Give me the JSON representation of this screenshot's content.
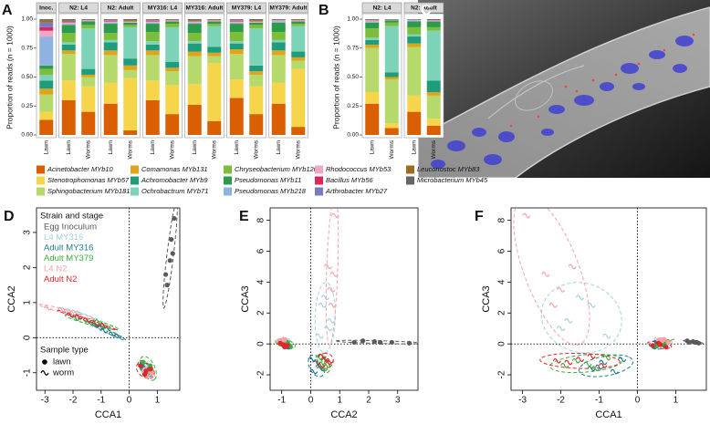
{
  "chart_data": [
    {
      "type": "stacked-bar",
      "ylabel": "Proportion of reads (n = 1000)",
      "ylim": [
        0,
        1
      ],
      "yticks": [
        {
          "value": 0,
          "label": "0.00"
        },
        {
          "value": 0.25,
          "label": "0.25"
        },
        {
          "value": 0.5,
          "label": "0.50"
        },
        {
          "value": 0.75,
          "label": "0.75"
        },
        {
          "value": 1,
          "label": "1.00"
        }
      ],
      "panels": [
        {
          "letter": "A",
          "facets": [
            {
              "label": "Inoc.",
              "categories": [
                "Lawn"
              ]
            },
            {
              "label": "N2: L4",
              "categories": [
                "Lawn",
                "Worms"
              ]
            },
            {
              "label": "N2: Adult",
              "categories": [
                "Lawn",
                "Worms"
              ]
            },
            {
              "label": "MY316: L4",
              "categories": [
                "Lawn",
                "Worms"
              ]
            },
            {
              "label": "MY316: Adult",
              "categories": [
                "Lawn",
                "Worms"
              ]
            },
            {
              "label": "MY379: L4",
              "categories": [
                "Lawn",
                "Worms"
              ]
            },
            {
              "label": "MY379: Adult",
              "categories": [
                "Lawn",
                "Worms"
              ]
            }
          ]
        },
        {
          "letter": "B",
          "facets": [
            {
              "label": "N2: L4",
              "categories": [
                "Lawn",
                "Worms"
              ]
            },
            {
              "label": "N2: Adult",
              "categories": [
                "Lawn",
                "Worms"
              ]
            }
          ]
        }
      ],
      "series": [
        {
          "name": "Acinetobacter MYb10",
          "color": "#d95f02",
          "values": [
            0.13,
            0.3,
            0.2,
            0.27,
            0.04,
            0.3,
            0.18,
            0.26,
            0.12,
            0.32,
            0.18,
            0.27,
            0.07,
            0.27,
            0.06,
            0.2,
            0.08
          ]
        },
        {
          "name": "Stenotrophomonas MYb57",
          "color": "#f7d54a",
          "values": [
            0.07,
            0.17,
            0.22,
            0.18,
            0.45,
            0.17,
            0.25,
            0.18,
            0.5,
            0.16,
            0.24,
            0.18,
            0.5,
            0.1,
            0.04,
            0.14,
            0.06
          ]
        },
        {
          "name": "Sphingobacterium MYb181",
          "color": "#b5d96b",
          "values": [
            0.15,
            0.23,
            0.08,
            0.24,
            0.07,
            0.22,
            0.12,
            0.24,
            0.06,
            0.22,
            0.1,
            0.24,
            0.07,
            0.38,
            0.38,
            0.42,
            0.2
          ]
        },
        {
          "name": "Comamonas MYb131",
          "color": "#e0a31a",
          "values": [
            0.05,
            0.03,
            0.02,
            0.04,
            0.04,
            0.04,
            0.03,
            0.04,
            0.03,
            0.04,
            0.03,
            0.04,
            0.03,
            0.03,
            0.02,
            0.03,
            0.03
          ]
        },
        {
          "name": "Achromobacter MYb9",
          "color": "#1e9c7b",
          "values": [
            0.07,
            0.05,
            0.05,
            0.07,
            0.06,
            0.05,
            0.05,
            0.07,
            0.05,
            0.05,
            0.05,
            0.07,
            0.05,
            0.04,
            0.04,
            0.06,
            0.1
          ]
        },
        {
          "name": "Ochrobactrum MYb71",
          "color": "#7dd3b8",
          "values": [
            0.05,
            0.02,
            0.35,
            0.02,
            0.27,
            0.03,
            0.3,
            0.02,
            0.18,
            0.02,
            0.32,
            0.02,
            0.22,
            0.02,
            0.4,
            0.02,
            0.43
          ]
        },
        {
          "name": "Chryseobacterium MYb120",
          "color": "#7cbd3a",
          "values": [
            0.05,
            0.08,
            0.03,
            0.06,
            0.02,
            0.08,
            0.03,
            0.07,
            0.02,
            0.08,
            0.03,
            0.07,
            0.02,
            0.08,
            0.03,
            0.06,
            0.03
          ]
        },
        {
          "name": "Pseudomonas MYb11",
          "color": "#2b9a4a",
          "values": [
            0.03,
            0.07,
            0.03,
            0.08,
            0.02,
            0.07,
            0.02,
            0.08,
            0.02,
            0.07,
            0.02,
            0.08,
            0.02,
            0.05,
            0.02,
            0.05,
            0.05
          ]
        },
        {
          "name": "Pseudomonas MYb218",
          "color": "#8fb3e0",
          "values": [
            0.25,
            0.01,
            0.005,
            0.01,
            0,
            0.01,
            0,
            0.01,
            0,
            0.01,
            0,
            0.01,
            0,
            0.01,
            0,
            0.01,
            0
          ]
        },
        {
          "name": "Rhodococcus MYb53",
          "color": "#f0a7c6",
          "values": [
            0.05,
            0.01,
            0.005,
            0.01,
            0.01,
            0.01,
            0.01,
            0.01,
            0.01,
            0.01,
            0.01,
            0.01,
            0.01,
            0.01,
            0.005,
            0.005,
            0.01
          ]
        },
        {
          "name": "Bacillus MYb56",
          "color": "#e0245e",
          "values": [
            0.03,
            0.005,
            0,
            0.005,
            0,
            0.005,
            0,
            0,
            0,
            0.005,
            0,
            0,
            0,
            0,
            0,
            0,
            0
          ]
        },
        {
          "name": "Arthrobacter MYb27",
          "color": "#7a7ac4",
          "values": [
            0.04,
            0.005,
            0,
            0.005,
            0,
            0.005,
            0,
            0,
            0,
            0.005,
            0,
            0,
            0,
            0,
            0,
            0,
            0
          ]
        },
        {
          "name": "Leuconostoc MYb83",
          "color": "#9c6b1c",
          "values": [
            0.02,
            0.01,
            0.005,
            0.005,
            0.01,
            0.005,
            0.005,
            0.01,
            0.005,
            0.005,
            0.01,
            0.005,
            0.005,
            0.005,
            0,
            0,
            0
          ]
        },
        {
          "name": "Microbacterium MYb45",
          "color": "#666666",
          "values": [
            0.01,
            0.01,
            0.005,
            0.005,
            0.01,
            0.005,
            0.005,
            0.01,
            0.005,
            0.005,
            0.01,
            0.005,
            0.005,
            0.005,
            0.005,
            0.005,
            0.01
          ]
        }
      ]
    },
    {
      "type": "image",
      "letter": "C"
    },
    {
      "type": "scatter",
      "legend_title": "Strain and stage",
      "sample_title": "Sample type",
      "sample_types": [
        {
          "name": "lawn",
          "marker": "circle"
        },
        {
          "name": "worm",
          "marker": "tilde"
        }
      ],
      "groups": [
        {
          "name": "Egg Inoculum",
          "color": "#5a5a5a",
          "points": [
            {
              "CCA1": [
                1.35,
                1.45,
                1.5,
                1.6,
                1.3,
                1.55
              ],
              "CCA2": [
                1.5,
                2.2,
                2.8,
                3.4,
                1.8,
                2.4
              ],
              "CCA3": [
                0.1,
                0.15,
                0.1,
                0.05,
                0.2,
                0.1
              ]
            },
            {
              "CCA1": [],
              "CCA2": [],
              "CCA3": []
            }
          ]
        },
        {
          "name": "L4 MY316",
          "color": "#9fd3e0",
          "points": [
            {
              "CCA1": [
                0.5,
                0.6,
                0.7,
                0.55
              ],
              "CCA2": [
                -0.8,
                -0.9,
                -0.85,
                -0.95
              ],
              "CCA3": [
                0.1,
                -0.1,
                0.2,
                0.0
              ]
            },
            {
              "CCA1": [
                -1.2,
                -1.8,
                -0.8,
                -1.5,
                -2.0
              ],
              "CCA2": [
                0.4,
                0.7,
                0.3,
                0.5,
                0.6
              ],
              "CCA3": [
                2.5,
                1.5,
                0.5,
                3.0,
                1.0
              ]
            }
          ]
        },
        {
          "name": "Adult MY316",
          "color": "#1f7a8c",
          "points": [
            {
              "CCA1": [
                0.45,
                0.6,
                0.7,
                0.5
              ],
              "CCA2": [
                -0.75,
                -1.0,
                -0.9,
                -0.85
              ],
              "CCA3": [
                -0.2,
                0.05,
                -0.1,
                0.1
              ]
            },
            {
              "CCA1": [
                -0.6,
                -0.9,
                -1.0,
                -0.4,
                -1.2
              ],
              "CCA2": [
                0.1,
                0.2,
                0.3,
                0.05,
                0.35
              ],
              "CCA3": [
                -1.8,
                -1.2,
                -1.5,
                -1.0,
                -1.6
              ]
            }
          ]
        },
        {
          "name": "Adult MY379",
          "color": "#3cae3c",
          "points": [
            {
              "CCA1": [
                0.65,
                0.8,
                0.5,
                0.75
              ],
              "CCA2": [
                -1.05,
                -0.95,
                -0.7,
                -0.8
              ],
              "CCA3": [
                0.0,
                0.15,
                -0.15,
                0.1
              ]
            },
            {
              "CCA1": [
                -1.3,
                -1.6,
                -1.1,
                -0.8,
                -1.9
              ],
              "CCA2": [
                0.4,
                0.5,
                0.45,
                0.3,
                0.55
              ],
              "CCA3": [
                -1.3,
                -1.1,
                -1.6,
                -0.9,
                -1.4
              ]
            }
          ]
        },
        {
          "name": "L4 N2",
          "color": "#f4a3a8",
          "points": [
            {
              "CCA1": [
                0.55,
                0.7,
                0.65,
                0.8
              ],
              "CCA2": [
                -0.9,
                -0.95,
                -1.1,
                -1.0
              ],
              "CCA3": [
                0.25,
                0.3,
                0.2,
                0.1
              ]
            },
            {
              "CCA1": [
                -2.9,
                -2.4,
                -2.0,
                -1.7,
                -2.2
              ],
              "CCA2": [
                0.85,
                0.8,
                0.7,
                0.6,
                0.75
              ],
              "CCA3": [
                8.3,
                4.5,
                3.5,
                5.0,
                2.5
              ]
            }
          ]
        },
        {
          "name": "Adult N2",
          "color": "#e3242b",
          "points": [
            {
              "CCA1": [
                0.4,
                0.6,
                0.55,
                0.75
              ],
              "CCA2": [
                -0.8,
                -0.95,
                -1.05,
                -0.9
              ],
              "CCA3": [
                -0.1,
                -0.05,
                0.05,
                -0.2
              ]
            },
            {
              "CCA1": [
                -1.5,
                -1.8,
                -1.2,
                -2.1,
                -0.9
              ],
              "CCA2": [
                0.5,
                0.6,
                0.4,
                0.65,
                0.35
              ],
              "CCA3": [
                -1.0,
                -1.2,
                -0.8,
                -1.1,
                -1.4
              ]
            }
          ]
        }
      ],
      "panels": [
        {
          "letter": "D",
          "xlabel": "CCA1",
          "ylabel": "CCA2",
          "xlim": [
            -3.3,
            1.8
          ],
          "ylim": [
            -1.5,
            3.7
          ],
          "xticks": [
            -3,
            -2,
            -1,
            0,
            1
          ],
          "yticks": [
            -1,
            0,
            1,
            2,
            3
          ],
          "legend": "upper left"
        },
        {
          "letter": "E",
          "xlabel": "CCA2",
          "ylabel": "CCA3",
          "xlim": [
            -1.4,
            3.7
          ],
          "ylim": [
            -3,
            8.8
          ],
          "xticks": [
            -1,
            0,
            1,
            2,
            3
          ],
          "yticks": [
            -2,
            0,
            2,
            4,
            6,
            8
          ]
        },
        {
          "letter": "F",
          "xlabel": "CCA1",
          "ylabel": "CCA3",
          "xlim": [
            -3.3,
            1.8
          ],
          "ylim": [
            -3,
            8.8
          ],
          "xticks": [
            -3,
            -2,
            -1,
            0,
            1
          ],
          "yticks": [
            -2,
            0,
            2,
            4,
            6,
            8
          ]
        }
      ]
    }
  ]
}
